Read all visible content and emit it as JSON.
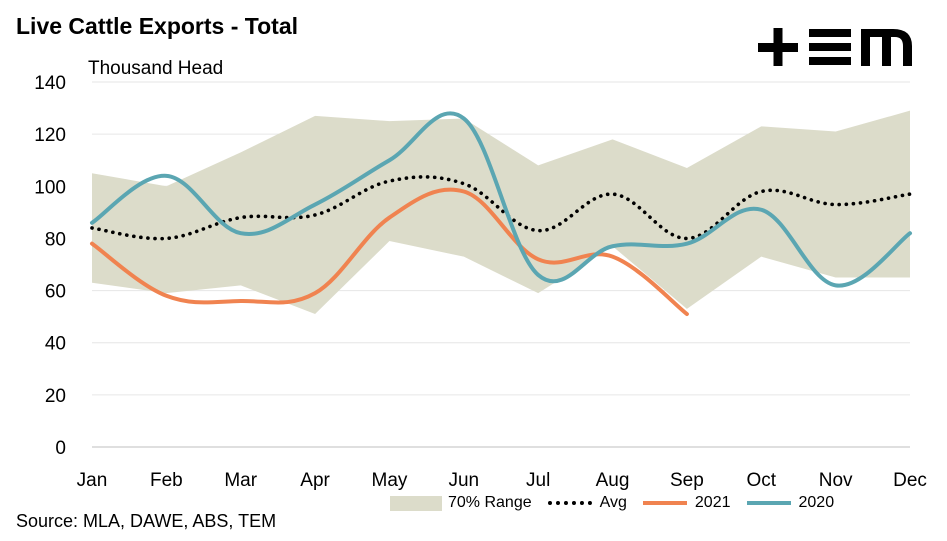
{
  "title": "Live Cattle Exports - Total",
  "source": "Source: MLA, DAWE, ABS, TEM",
  "logo": {
    "name": "TEM logo",
    "color": "#000000"
  },
  "chart_data": {
    "type": "line",
    "title": "Live Cattle Exports - Total",
    "ylabel": "Thousand Head",
    "xlabel": "",
    "categories": [
      "Jan",
      "Feb",
      "Mar",
      "Apr",
      "May",
      "Jun",
      "Jul",
      "Aug",
      "Sep",
      "Oct",
      "Nov",
      "Dec"
    ],
    "ylim": [
      0,
      140
    ],
    "yticks": [
      0,
      20,
      40,
      60,
      80,
      100,
      120,
      140
    ],
    "grid": true,
    "legend_position": "bottom",
    "band": {
      "name": "70% Range",
      "color": "#dcdcca",
      "lower": [
        63,
        59,
        62,
        51,
        79,
        73,
        59,
        77,
        53,
        73,
        65,
        65
      ],
      "upper": [
        105,
        100,
        113,
        127,
        125,
        126,
        108,
        118,
        107,
        123,
        121,
        129
      ]
    },
    "series": [
      {
        "name": "Avg",
        "color": "#000000",
        "style": "dotted",
        "values": [
          84,
          80,
          88,
          89,
          102,
          101,
          83,
          97,
          80,
          98,
          93,
          97
        ]
      },
      {
        "name": "2021",
        "color": "#f08350",
        "style": "solid",
        "values": [
          78,
          58,
          56,
          59,
          88,
          98,
          72,
          73,
          51,
          null,
          null,
          null
        ]
      },
      {
        "name": "2020",
        "color": "#5ba6b2",
        "style": "solid",
        "values": [
          86,
          104,
          82,
          93,
          110,
          126,
          66,
          77,
          78,
          91,
          62,
          82
        ]
      }
    ]
  }
}
